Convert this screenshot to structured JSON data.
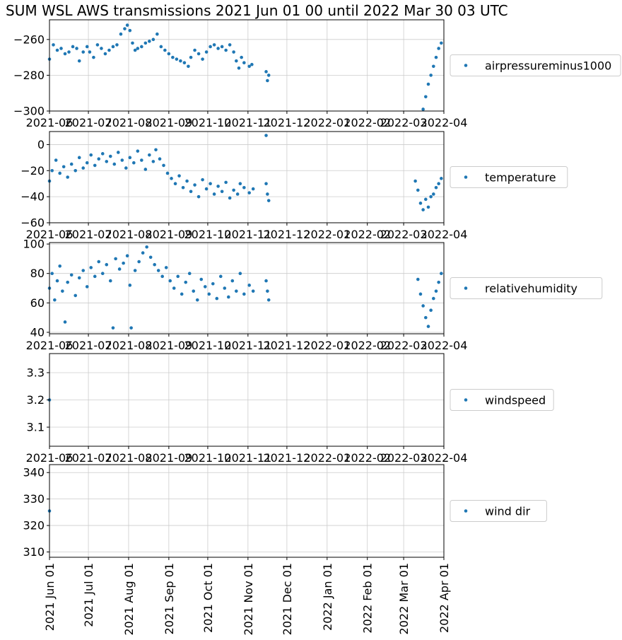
{
  "title": "SUM WSL AWS transmissions 2021 Jun 01 00 until 2022 Mar 30 03 UTC",
  "colors": {
    "series": "#1f77b4",
    "grid": "#cccccc",
    "axis": "#000000",
    "legend_border": "#cccccc"
  },
  "x_tick_labels_short": [
    "2021-06",
    "2021-07",
    "2021-08",
    "2021-09",
    "2021-10",
    "2021-11",
    "2021-12",
    "2022-01",
    "2022-02",
    "2022-03",
    "2022-04"
  ],
  "x_tick_labels_long": [
    "2021 Jun 01",
    "2021 Jul 01",
    "2021 Aug 01",
    "2021 Sep 01",
    "2021 Oct 01",
    "2021 Nov 01",
    "2021 Dec 01",
    "2022 Jan 01",
    "2022 Feb 01",
    "2022 Mar 01",
    "2022 Apr 01"
  ],
  "chart_data": [
    {
      "type": "scatter",
      "legend": "airpressureminus1000",
      "xlim": [
        "2021-06-01",
        "2022-04-01"
      ],
      "ylim": [
        -300,
        -249
      ],
      "yticks": [
        -260,
        -280,
        -300
      ],
      "ytick_labels": [
        "−260",
        "−280",
        "−300"
      ],
      "grid": true,
      "legend_position": "right",
      "points": [
        [
          "2021-06-01",
          -271
        ],
        [
          "2021-06-04",
          -263
        ],
        [
          "2021-06-07",
          -266
        ],
        [
          "2021-06-10",
          -265
        ],
        [
          "2021-06-13",
          -268
        ],
        [
          "2021-06-16",
          -267
        ],
        [
          "2021-06-19",
          -264
        ],
        [
          "2021-06-22",
          -265
        ],
        [
          "2021-06-24",
          -272
        ],
        [
          "2021-06-27",
          -267
        ],
        [
          "2021-06-30",
          -264
        ],
        [
          "2021-07-02",
          -267
        ],
        [
          "2021-07-05",
          -270
        ],
        [
          "2021-07-08",
          -263
        ],
        [
          "2021-07-11",
          -265
        ],
        [
          "2021-07-14",
          -268
        ],
        [
          "2021-07-17",
          -266
        ],
        [
          "2021-07-20",
          -264
        ],
        [
          "2021-07-23",
          -263
        ],
        [
          "2021-07-26",
          -257
        ],
        [
          "2021-07-29",
          -254
        ],
        [
          "2021-07-31",
          -252
        ],
        [
          "2021-08-02",
          -255
        ],
        [
          "2021-08-04",
          -262
        ],
        [
          "2021-08-06",
          -266
        ],
        [
          "2021-08-08",
          -265
        ],
        [
          "2021-08-11",
          -264
        ],
        [
          "2021-08-14",
          -262
        ],
        [
          "2021-08-17",
          -261
        ],
        [
          "2021-08-20",
          -260
        ],
        [
          "2021-08-23",
          -257
        ],
        [
          "2021-08-26",
          -264
        ],
        [
          "2021-08-29",
          -266
        ],
        [
          "2021-09-01",
          -268
        ],
        [
          "2021-09-04",
          -270
        ],
        [
          "2021-09-07",
          -271
        ],
        [
          "2021-09-10",
          -272
        ],
        [
          "2021-09-13",
          -273
        ],
        [
          "2021-09-16",
          -275
        ],
        [
          "2021-09-18",
          -270
        ],
        [
          "2021-09-21",
          -266
        ],
        [
          "2021-09-24",
          -268
        ],
        [
          "2021-09-27",
          -271
        ],
        [
          "2021-09-30",
          -267
        ],
        [
          "2021-10-03",
          -264
        ],
        [
          "2021-10-06",
          -263
        ],
        [
          "2021-10-09",
          -265
        ],
        [
          "2021-10-12",
          -264
        ],
        [
          "2021-10-15",
          -266
        ],
        [
          "2021-10-18",
          -263
        ],
        [
          "2021-10-21",
          -267
        ],
        [
          "2021-10-23",
          -272
        ],
        [
          "2021-10-25",
          -276
        ],
        [
          "2021-10-27",
          -270
        ],
        [
          "2021-10-29",
          -273
        ],
        [
          "2021-11-02",
          -275
        ],
        [
          "2021-11-04",
          -274
        ],
        [
          "2021-11-15",
          -278
        ],
        [
          "2021-11-16",
          -283
        ],
        [
          "2021-11-17",
          -280
        ],
        [
          "2022-03-16",
          -299
        ],
        [
          "2022-03-18",
          -292
        ],
        [
          "2022-03-20",
          -285
        ],
        [
          "2022-03-22",
          -280
        ],
        [
          "2022-03-24",
          -275
        ],
        [
          "2022-03-26",
          -270
        ],
        [
          "2022-03-28",
          -265
        ],
        [
          "2022-03-30",
          -262
        ]
      ]
    },
    {
      "type": "scatter",
      "legend": "temperature",
      "xlim": [
        "2021-06-01",
        "2022-04-01"
      ],
      "ylim": [
        -60,
        10
      ],
      "yticks": [
        0,
        -20,
        -40,
        -60
      ],
      "ytick_labels": [
        "0",
        "−20",
        "−40",
        "−60"
      ],
      "grid": true,
      "legend_position": "right",
      "points": [
        [
          "2021-06-01",
          -28
        ],
        [
          "2021-06-03",
          -20
        ],
        [
          "2021-06-06",
          -12
        ],
        [
          "2021-06-09",
          -22
        ],
        [
          "2021-06-12",
          -17
        ],
        [
          "2021-06-15",
          -25
        ],
        [
          "2021-06-18",
          -15
        ],
        [
          "2021-06-21",
          -20
        ],
        [
          "2021-06-24",
          -10
        ],
        [
          "2021-06-27",
          -18
        ],
        [
          "2021-06-30",
          -14
        ],
        [
          "2021-07-03",
          -8
        ],
        [
          "2021-07-06",
          -16
        ],
        [
          "2021-07-09",
          -11
        ],
        [
          "2021-07-12",
          -7
        ],
        [
          "2021-07-15",
          -13
        ],
        [
          "2021-07-18",
          -9
        ],
        [
          "2021-07-21",
          -15
        ],
        [
          "2021-07-24",
          -6
        ],
        [
          "2021-07-27",
          -12
        ],
        [
          "2021-07-30",
          -18
        ],
        [
          "2021-08-02",
          -10
        ],
        [
          "2021-08-05",
          -14
        ],
        [
          "2021-08-08",
          -5
        ],
        [
          "2021-08-11",
          -12
        ],
        [
          "2021-08-14",
          -19
        ],
        [
          "2021-08-17",
          -8
        ],
        [
          "2021-08-20",
          -13
        ],
        [
          "2021-08-22",
          -4
        ],
        [
          "2021-08-25",
          -11
        ],
        [
          "2021-08-28",
          -16
        ],
        [
          "2021-08-31",
          -22
        ],
        [
          "2021-09-03",
          -26
        ],
        [
          "2021-09-06",
          -30
        ],
        [
          "2021-09-09",
          -24
        ],
        [
          "2021-09-12",
          -33
        ],
        [
          "2021-09-15",
          -28
        ],
        [
          "2021-09-18",
          -36
        ],
        [
          "2021-09-21",
          -31
        ],
        [
          "2021-09-24",
          -40
        ],
        [
          "2021-09-27",
          -27
        ],
        [
          "2021-09-30",
          -34
        ],
        [
          "2021-10-03",
          -30
        ],
        [
          "2021-10-06",
          -38
        ],
        [
          "2021-10-09",
          -32
        ],
        [
          "2021-10-12",
          -36
        ],
        [
          "2021-10-15",
          -29
        ],
        [
          "2021-10-18",
          -41
        ],
        [
          "2021-10-21",
          -35
        ],
        [
          "2021-10-24",
          -38
        ],
        [
          "2021-10-26",
          -30
        ],
        [
          "2021-10-29",
          -33
        ],
        [
          "2021-11-02",
          -37
        ],
        [
          "2021-11-05",
          -34
        ],
        [
          "2021-11-15",
          7
        ],
        [
          "2021-11-15",
          -30
        ],
        [
          "2021-11-16",
          -38
        ],
        [
          "2021-11-17",
          -43
        ],
        [
          "2022-03-10",
          -28
        ],
        [
          "2022-03-12",
          -35
        ],
        [
          "2022-03-14",
          -45
        ],
        [
          "2022-03-16",
          -50
        ],
        [
          "2022-03-18",
          -42
        ],
        [
          "2022-03-20",
          -48
        ],
        [
          "2022-03-22",
          -40
        ],
        [
          "2022-03-24",
          -38
        ],
        [
          "2022-03-26",
          -33
        ],
        [
          "2022-03-28",
          -30
        ],
        [
          "2022-03-30",
          -26
        ]
      ]
    },
    {
      "type": "scatter",
      "legend": "relativehumidity",
      "xlim": [
        "2021-06-01",
        "2022-04-01"
      ],
      "ylim": [
        39,
        101
      ],
      "yticks": [
        100,
        80,
        60,
        40
      ],
      "ytick_labels": [
        "100",
        "80",
        "60",
        "40"
      ],
      "grid": true,
      "legend_position": "right",
      "points": [
        [
          "2021-06-01",
          70
        ],
        [
          "2021-06-03",
          80
        ],
        [
          "2021-06-05",
          62
        ],
        [
          "2021-06-07",
          75
        ],
        [
          "2021-06-09",
          85
        ],
        [
          "2021-06-11",
          68
        ],
        [
          "2021-06-13",
          47
        ],
        [
          "2021-06-15",
          74
        ],
        [
          "2021-06-18",
          79
        ],
        [
          "2021-06-21",
          65
        ],
        [
          "2021-06-24",
          77
        ],
        [
          "2021-06-27",
          82
        ],
        [
          "2021-06-30",
          71
        ],
        [
          "2021-07-03",
          84
        ],
        [
          "2021-07-06",
          78
        ],
        [
          "2021-07-09",
          88
        ],
        [
          "2021-07-12",
          80
        ],
        [
          "2021-07-15",
          86
        ],
        [
          "2021-07-18",
          75
        ],
        [
          "2021-07-20",
          43
        ],
        [
          "2021-07-22",
          90
        ],
        [
          "2021-07-25",
          83
        ],
        [
          "2021-07-28",
          87
        ],
        [
          "2021-07-31",
          92
        ],
        [
          "2021-08-02",
          72
        ],
        [
          "2021-08-03",
          43
        ],
        [
          "2021-08-06",
          82
        ],
        [
          "2021-08-09",
          88
        ],
        [
          "2021-08-12",
          94
        ],
        [
          "2021-08-15",
          98
        ],
        [
          "2021-08-18",
          91
        ],
        [
          "2021-08-21",
          86
        ],
        [
          "2021-08-24",
          82
        ],
        [
          "2021-08-27",
          78
        ],
        [
          "2021-08-30",
          84
        ],
        [
          "2021-09-02",
          75
        ],
        [
          "2021-09-05",
          70
        ],
        [
          "2021-09-08",
          78
        ],
        [
          "2021-09-11",
          66
        ],
        [
          "2021-09-14",
          74
        ],
        [
          "2021-09-17",
          80
        ],
        [
          "2021-09-20",
          68
        ],
        [
          "2021-09-23",
          62
        ],
        [
          "2021-09-26",
          76
        ],
        [
          "2021-09-29",
          71
        ],
        [
          "2021-10-02",
          66
        ],
        [
          "2021-10-05",
          73
        ],
        [
          "2021-10-08",
          63
        ],
        [
          "2021-10-11",
          78
        ],
        [
          "2021-10-14",
          70
        ],
        [
          "2021-10-17",
          64
        ],
        [
          "2021-10-20",
          75
        ],
        [
          "2021-10-23",
          68
        ],
        [
          "2021-10-26",
          80
        ],
        [
          "2021-10-29",
          66
        ],
        [
          "2021-11-02",
          72
        ],
        [
          "2021-11-05",
          68
        ],
        [
          "2021-11-15",
          75
        ],
        [
          "2021-11-16",
          68
        ],
        [
          "2021-11-17",
          62
        ],
        [
          "2022-03-12",
          76
        ],
        [
          "2022-03-14",
          66
        ],
        [
          "2022-03-16",
          58
        ],
        [
          "2022-03-18",
          50
        ],
        [
          "2022-03-20",
          44
        ],
        [
          "2022-03-22",
          55
        ],
        [
          "2022-03-24",
          63
        ],
        [
          "2022-03-26",
          68
        ],
        [
          "2022-03-28",
          74
        ],
        [
          "2022-03-30",
          80
        ]
      ]
    },
    {
      "type": "scatter",
      "legend": "windspeed",
      "xlim": [
        "2021-06-01",
        "2022-04-01"
      ],
      "ylim": [
        3.03,
        3.37
      ],
      "yticks": [
        3.3,
        3.2,
        3.1
      ],
      "ytick_labels": [
        "3.3",
        "3.2",
        "3.1"
      ],
      "grid": true,
      "legend_position": "right",
      "points": [
        [
          "2021-06-01",
          3.2
        ]
      ]
    },
    {
      "type": "scatter",
      "legend": "wind dir",
      "xlim": [
        "2021-06-01",
        "2022-04-01"
      ],
      "ylim": [
        308,
        343
      ],
      "yticks": [
        340,
        330,
        320,
        310
      ],
      "ytick_labels": [
        "340",
        "330",
        "320",
        "310"
      ],
      "grid": true,
      "legend_position": "right",
      "points": [
        [
          "2021-06-01",
          325.5
        ]
      ]
    }
  ]
}
